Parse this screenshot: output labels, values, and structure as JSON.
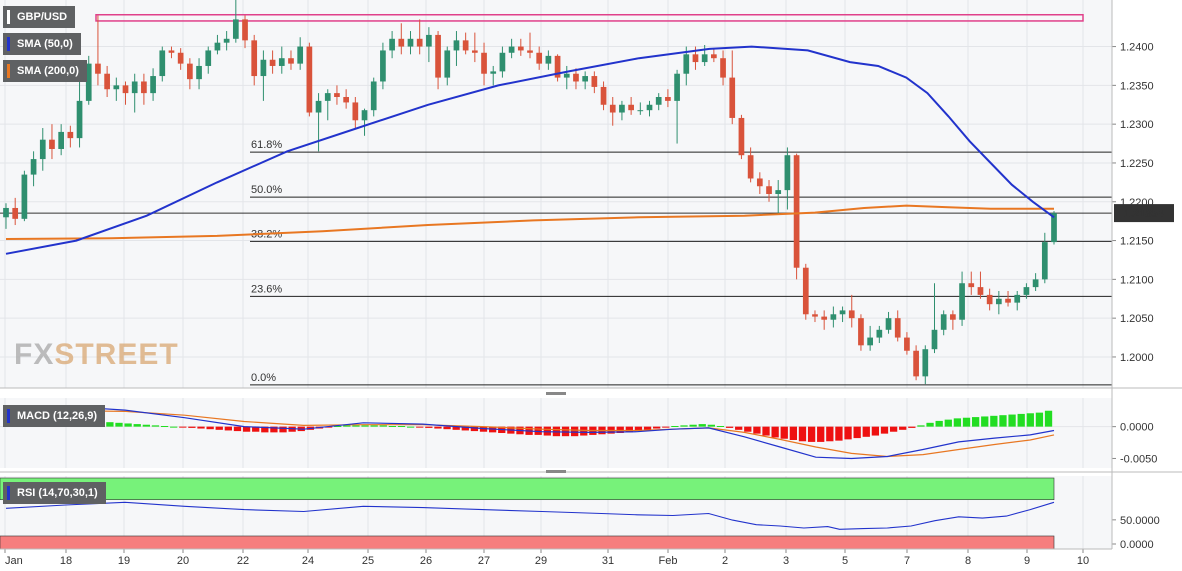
{
  "chart_data": {
    "type": "candlestick",
    "symbol": "GBP/USD",
    "last_price": "1.21854",
    "colors": {
      "up": "#2f8f6f",
      "down": "#d9533b",
      "sma50": "#2233cc",
      "sma200": "#e87722",
      "macd_pos": "#22dd22",
      "macd_neg": "#ee1111",
      "rsi_upper": "#77f27a",
      "rsi_lower": "#f67e7e",
      "price_tag": "#333333",
      "resistance_box": "#e0408a"
    },
    "indicators": {
      "sma50_label": "SMA (50,0)",
      "sma200_label": "SMA (200,0)",
      "macd_label": "MACD (12,26,9)",
      "rsi_label": "RSI (14,70,30,1)"
    },
    "price_axis": {
      "ylim": [
        1.196,
        1.246
      ],
      "ticks": [
        "1.2000",
        "1.2050",
        "1.2100",
        "1.2150",
        "1.2200",
        "1.2250",
        "1.2300",
        "1.2350",
        "1.2400"
      ]
    },
    "macd_axis": {
      "ticks": [
        "0.0000",
        "-0.0050"
      ]
    },
    "rsi_axis": {
      "ticks": [
        "50.0000",
        "0.0000"
      ]
    },
    "x_ticks": [
      "Jan",
      "18",
      "19",
      "20",
      "22",
      "24",
      "25",
      "26",
      "27",
      "29",
      "31",
      "Feb",
      "2",
      "3",
      "5",
      "7",
      "8",
      "9",
      "10"
    ],
    "fib_levels": [
      {
        "label": "61.8%",
        "value": 1.2264
      },
      {
        "label": "50.0%",
        "value": 1.2206
      },
      {
        "label": "38.2%",
        "value": 1.2149
      },
      {
        "label": "23.6%",
        "value": 1.2078
      },
      {
        "label": "0.0%",
        "value": 1.1964
      }
    ],
    "resistance_zone": [
      1.2433,
      1.2441
    ],
    "current_level": 1.21854,
    "candles": [
      [
        1.218,
        1.2198,
        1.2165,
        1.2192
      ],
      [
        1.2192,
        1.2205,
        1.217,
        1.2178
      ],
      [
        1.2178,
        1.224,
        1.2175,
        1.2235
      ],
      [
        1.2235,
        1.2265,
        1.222,
        1.2255
      ],
      [
        1.2255,
        1.2295,
        1.224,
        1.228
      ],
      [
        1.228,
        1.23,
        1.2255,
        1.2268
      ],
      [
        1.2268,
        1.23,
        1.226,
        1.229
      ],
      [
        1.229,
        1.2298,
        1.227,
        1.2282
      ],
      [
        1.2282,
        1.236,
        1.227,
        1.233
      ],
      [
        1.233,
        1.2388,
        1.2325,
        1.2378
      ],
      [
        1.2378,
        1.244,
        1.235,
        1.2365
      ],
      [
        1.2365,
        1.2375,
        1.2335,
        1.2345
      ],
      [
        1.2345,
        1.236,
        1.233,
        1.235
      ],
      [
        1.235,
        1.2355,
        1.2325,
        1.234
      ],
      [
        1.234,
        1.2365,
        1.2315,
        1.2355
      ],
      [
        1.2355,
        1.2365,
        1.2325,
        1.234
      ],
      [
        1.234,
        1.2372,
        1.233,
        1.2362
      ],
      [
        1.2362,
        1.24,
        1.2355,
        1.2395
      ],
      [
        1.2395,
        1.24,
        1.2385,
        1.2392
      ],
      [
        1.2392,
        1.2398,
        1.237,
        1.2378
      ],
      [
        1.2378,
        1.2385,
        1.2345,
        1.2358
      ],
      [
        1.2358,
        1.2385,
        1.2345,
        1.2375
      ],
      [
        1.2375,
        1.24,
        1.2365,
        1.2395
      ],
      [
        1.2395,
        1.2415,
        1.239,
        1.2405
      ],
      [
        1.2405,
        1.242,
        1.2395,
        1.241
      ],
      [
        1.241,
        1.246,
        1.2405,
        1.2435
      ],
      [
        1.2435,
        1.244,
        1.2398,
        1.2408
      ],
      [
        1.2408,
        1.2415,
        1.235,
        1.2362
      ],
      [
        1.2362,
        1.2395,
        1.233,
        1.2383
      ],
      [
        1.2383,
        1.2395,
        1.2365,
        1.2375
      ],
      [
        1.2375,
        1.24,
        1.2365,
        1.2385
      ],
      [
        1.2385,
        1.2395,
        1.237,
        1.2378
      ],
      [
        1.2378,
        1.2412,
        1.237,
        1.24
      ],
      [
        1.24,
        1.2405,
        1.231,
        1.2315
      ],
      [
        1.2315,
        1.234,
        1.2265,
        1.233
      ],
      [
        1.233,
        1.2345,
        1.2305,
        1.234
      ],
      [
        1.234,
        1.235,
        1.2325,
        1.2335
      ],
      [
        1.2335,
        1.2345,
        1.232,
        1.2328
      ],
      [
        1.2328,
        1.2335,
        1.2295,
        1.2305
      ],
      [
        1.2305,
        1.232,
        1.2285,
        1.2318
      ],
      [
        1.2318,
        1.236,
        1.231,
        1.2355
      ],
      [
        1.2355,
        1.2405,
        1.2345,
        1.2395
      ],
      [
        1.2395,
        1.242,
        1.2385,
        1.241
      ],
      [
        1.241,
        1.243,
        1.239,
        1.24
      ],
      [
        1.24,
        1.242,
        1.239,
        1.241
      ],
      [
        1.241,
        1.2435,
        1.239,
        1.24
      ],
      [
        1.24,
        1.2425,
        1.238,
        1.2415
      ],
      [
        1.2415,
        1.242,
        1.2345,
        1.236
      ],
      [
        1.236,
        1.24,
        1.235,
        1.2395
      ],
      [
        1.2395,
        1.242,
        1.2375,
        1.2408
      ],
      [
        1.2408,
        1.2418,
        1.239,
        1.2395
      ],
      [
        1.2395,
        1.2418,
        1.238,
        1.2392
      ],
      [
        1.2392,
        1.2405,
        1.235,
        1.2365
      ],
      [
        1.2365,
        1.2375,
        1.235,
        1.2368
      ],
      [
        1.2368,
        1.24,
        1.236,
        1.2392
      ],
      [
        1.2392,
        1.241,
        1.2385,
        1.24
      ],
      [
        1.24,
        1.241,
        1.2388,
        1.2395
      ],
      [
        1.2395,
        1.2418,
        1.2385,
        1.2392
      ],
      [
        1.2392,
        1.24,
        1.237,
        1.2378
      ],
      [
        1.2378,
        1.2395,
        1.237,
        1.2388
      ],
      [
        1.2388,
        1.239,
        1.2355,
        1.236
      ],
      [
        1.236,
        1.2375,
        1.2345,
        1.2365
      ],
      [
        1.2365,
        1.2372,
        1.2345,
        1.2355
      ],
      [
        1.2355,
        1.2368,
        1.2345,
        1.2362
      ],
      [
        1.2362,
        1.2368,
        1.234,
        1.2348
      ],
      [
        1.2348,
        1.2355,
        1.2318,
        1.2325
      ],
      [
        1.2325,
        1.2335,
        1.2298,
        1.2315
      ],
      [
        1.2315,
        1.233,
        1.2305,
        1.2325
      ],
      [
        1.2325,
        1.2335,
        1.2312,
        1.2318
      ],
      [
        1.2318,
        1.2328,
        1.2312,
        1.2318
      ],
      [
        1.2318,
        1.233,
        1.231,
        1.2325
      ],
      [
        1.2325,
        1.234,
        1.2318,
        1.2335
      ],
      [
        1.2335,
        1.2345,
        1.2322,
        1.233
      ],
      [
        1.233,
        1.237,
        1.2275,
        1.2365
      ],
      [
        1.2365,
        1.24,
        1.235,
        1.239
      ],
      [
        1.239,
        1.24,
        1.237,
        1.238
      ],
      [
        1.238,
        1.2402,
        1.2375,
        1.239
      ],
      [
        1.239,
        1.2398,
        1.238,
        1.2385
      ],
      [
        1.2385,
        1.2395,
        1.235,
        1.236
      ],
      [
        1.236,
        1.2395,
        1.23,
        1.2308
      ],
      [
        1.2308,
        1.2312,
        1.2255,
        1.226
      ],
      [
        1.226,
        1.227,
        1.2225,
        1.223
      ],
      [
        1.223,
        1.2238,
        1.221,
        1.222
      ],
      [
        1.222,
        1.2228,
        1.22,
        1.221
      ],
      [
        1.221,
        1.2228,
        1.2185,
        1.2215
      ],
      [
        1.2215,
        1.227,
        1.219,
        1.226
      ],
      [
        1.226,
        1.2262,
        1.21,
        1.2115
      ],
      [
        1.2115,
        1.212,
        1.2048,
        1.2055
      ],
      [
        1.2055,
        1.206,
        1.2045,
        1.2052
      ],
      [
        1.2052,
        1.206,
        1.2035,
        1.2048
      ],
      [
        1.2048,
        1.2065,
        1.2038,
        1.2055
      ],
      [
        1.2055,
        1.2065,
        1.2045,
        1.206
      ],
      [
        1.206,
        1.208,
        1.2038,
        1.205
      ],
      [
        1.205,
        1.2055,
        1.2008,
        1.2015
      ],
      [
        1.2015,
        1.204,
        1.2008,
        1.2025
      ],
      [
        1.2025,
        1.204,
        1.2018,
        1.2035
      ],
      [
        1.2035,
        1.2058,
        1.203,
        1.205
      ],
      [
        1.205,
        1.206,
        1.202,
        1.2025
      ],
      [
        1.2025,
        1.2032,
        1.2003,
        1.2008
      ],
      [
        1.2008,
        1.2015,
        1.197,
        1.1975
      ],
      [
        1.1975,
        1.2015,
        1.1965,
        1.201
      ],
      [
        1.201,
        1.2095,
        1.2005,
        1.2035
      ],
      [
        1.2035,
        1.206,
        1.2028,
        1.2055
      ],
      [
        1.2055,
        1.206,
        1.2035,
        1.2048
      ],
      [
        1.2048,
        1.211,
        1.204,
        1.2095
      ],
      [
        1.2095,
        1.211,
        1.208,
        1.209
      ],
      [
        1.209,
        1.211,
        1.2075,
        1.208
      ],
      [
        1.208,
        1.2088,
        1.206,
        1.2068
      ],
      [
        1.2068,
        1.2085,
        1.2055,
        1.2075
      ],
      [
        1.2075,
        1.2085,
        1.2065,
        1.207
      ],
      [
        1.207,
        1.2085,
        1.206,
        1.208
      ],
      [
        1.208,
        1.2095,
        1.2075,
        1.209
      ],
      [
        1.209,
        1.2108,
        1.2085,
        1.21
      ],
      [
        1.21,
        1.216,
        1.2095,
        1.2148
      ],
      [
        1.2148,
        1.2188,
        1.2145,
        1.21854
      ]
    ],
    "sma50": [
      [
        0,
        1.2133
      ],
      [
        10,
        1.215
      ],
      [
        20,
        1.2182
      ],
      [
        30,
        1.2225
      ],
      [
        40,
        1.2265
      ],
      [
        50,
        1.2295
      ],
      [
        60,
        1.2325
      ],
      [
        70,
        1.235
      ],
      [
        80,
        1.2368
      ],
      [
        90,
        1.2385
      ],
      [
        100,
        1.2397
      ],
      [
        106,
        1.24
      ],
      [
        114,
        1.2395
      ],
      [
        120,
        1.238
      ],
      [
        124,
        1.2375
      ],
      [
        128,
        1.236
      ],
      [
        131,
        1.234
      ],
      [
        134,
        1.231
      ],
      [
        137,
        1.2278
      ],
      [
        140,
        1.225
      ],
      [
        143,
        1.2222
      ],
      [
        146,
        1.22
      ],
      [
        149,
        1.218
      ]
    ],
    "sma200": [
      [
        0,
        1.2152
      ],
      [
        15,
        1.2153
      ],
      [
        30,
        1.2156
      ],
      [
        45,
        1.2162
      ],
      [
        60,
        1.217
      ],
      [
        75,
        1.2176
      ],
      [
        90,
        1.218
      ],
      [
        105,
        1.2182
      ],
      [
        115,
        1.2186
      ],
      [
        122,
        1.2192
      ],
      [
        128,
        1.2195
      ],
      [
        134,
        1.2193
      ],
      [
        140,
        1.2191
      ],
      [
        149,
        1.2191
      ]
    ],
    "macd": {
      "histogram": [
        0.0002,
        0.0004,
        0.0006,
        0.0008,
        0.001,
        0.0012,
        0.0012,
        0.0011,
        0.001,
        0.0009,
        0.0008,
        0.0007,
        0.0006,
        0.0005,
        0.0004,
        0.0003,
        0.0002,
        0.0001,
        0.0,
        -0.0001,
        -0.0002,
        -0.0003,
        -0.0004,
        -0.0005,
        -0.0006,
        -0.0007,
        -0.0008,
        -0.0008,
        -0.0009,
        -0.0009,
        -0.0009,
        -0.0008,
        -0.0007,
        -0.0005,
        -0.0003,
        -0.0001,
        0.0001,
        0.0002,
        0.0002,
        0.0002,
        0.0002,
        0.0002,
        0.0001,
        0.0001,
        0.0,
        -0.0001,
        -0.0002,
        -0.0003,
        -0.0004,
        -0.0005,
        -0.0006,
        -0.0007,
        -0.0008,
        -0.0009,
        -0.001,
        -0.0011,
        -0.0012,
        -0.0013,
        -0.0013,
        -0.0014,
        -0.0015,
        -0.0015,
        -0.0015,
        -0.0014,
        -0.0013,
        -0.0012,
        -0.0011,
        -0.001,
        -0.0009,
        -0.0007,
        -0.0005,
        -0.0003,
        -0.0001,
        0.0001,
        0.0002,
        0.0003,
        0.0004,
        0.0003,
        0.0001,
        -0.0002,
        -0.0005,
        -0.0008,
        -0.0011,
        -0.0014,
        -0.0017,
        -0.0019,
        -0.0021,
        -0.0023,
        -0.0024,
        -0.0024,
        -0.0023,
        -0.0022,
        -0.002,
        -0.0018,
        -0.0016,
        -0.0014,
        -0.0011,
        -0.0008,
        -0.0005,
        -0.0002,
        0.0002,
        0.0006,
        0.0009,
        0.0011,
        0.0013,
        0.0014,
        0.0015,
        0.0016,
        0.0017,
        0.0018,
        0.0019,
        0.002,
        0.0021,
        0.0022,
        0.0025
      ],
      "macd_line": [
        [
          0,
          0.003
        ],
        [
          10,
          0.0032
        ],
        [
          20,
          0.0026
        ],
        [
          30,
          0.0014
        ],
        [
          40,
          0.0
        ],
        [
          50,
          -0.0004
        ],
        [
          60,
          0.0006
        ],
        [
          70,
          0.0004
        ],
        [
          80,
          -0.0003
        ],
        [
          90,
          -0.0008
        ],
        [
          98,
          -0.0009
        ],
        [
          106,
          -0.0008
        ],
        [
          112,
          -0.0004
        ],
        [
          118,
          -0.0002
        ],
        [
          124,
          -0.0016
        ],
        [
          130,
          -0.0032
        ],
        [
          136,
          -0.0048
        ],
        [
          142,
          -0.005
        ],
        [
          148,
          -0.0047
        ],
        [
          154,
          -0.0036
        ],
        [
          160,
          -0.0024
        ],
        [
          166,
          -0.0018
        ],
        [
          172,
          -0.0013
        ],
        [
          176,
          -0.0006
        ]
      ],
      "signal_line": [
        [
          0,
          0.002
        ],
        [
          10,
          0.0025
        ],
        [
          20,
          0.0024
        ],
        [
          30,
          0.0018
        ],
        [
          40,
          0.0008
        ],
        [
          50,
          0.0002
        ],
        [
          60,
          0.0003
        ],
        [
          70,
          0.0003
        ],
        [
          80,
          0.0
        ],
        [
          90,
          -0.0004
        ],
        [
          98,
          -0.0006
        ],
        [
          106,
          -0.0006
        ],
        [
          112,
          -0.0004
        ],
        [
          118,
          -0.0002
        ],
        [
          124,
          -0.0009
        ],
        [
          130,
          -0.002
        ],
        [
          136,
          -0.0032
        ],
        [
          142,
          -0.0042
        ],
        [
          148,
          -0.0047
        ],
        [
          154,
          -0.0044
        ],
        [
          160,
          -0.0036
        ],
        [
          166,
          -0.0028
        ],
        [
          172,
          -0.0021
        ],
        [
          176,
          -0.0013
        ]
      ]
    },
    "rsi": [
      [
        0,
        57
      ],
      [
        10,
        62
      ],
      [
        20,
        66
      ],
      [
        30,
        60
      ],
      [
        40,
        55
      ],
      [
        50,
        52
      ],
      [
        60,
        60
      ],
      [
        70,
        58
      ],
      [
        80,
        55
      ],
      [
        90,
        52
      ],
      [
        100,
        49
      ],
      [
        106,
        47
      ],
      [
        112,
        46
      ],
      [
        118,
        49
      ],
      [
        122,
        39
      ],
      [
        126,
        32
      ],
      [
        130,
        30
      ],
      [
        134,
        27
      ],
      [
        138,
        29
      ],
      [
        140,
        25
      ],
      [
        144,
        26
      ],
      [
        148,
        27
      ],
      [
        152,
        30
      ],
      [
        156,
        38
      ],
      [
        160,
        44
      ],
      [
        164,
        42
      ],
      [
        168,
        45
      ],
      [
        172,
        55
      ],
      [
        176,
        66
      ]
    ]
  }
}
